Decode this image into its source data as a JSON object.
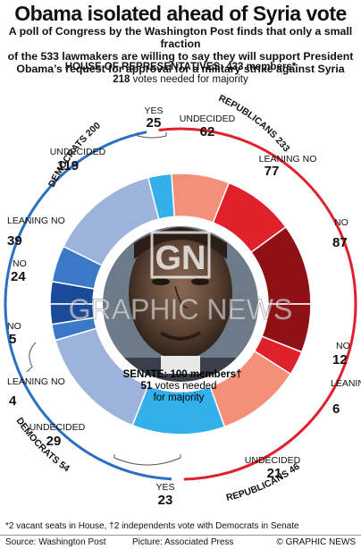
{
  "title": "Obama isolated ahead of Syria vote",
  "subtitle": [
    "A poll of Congress by the Washington Post finds that only a small fraction",
    "of the 533 lawmakers are willing to say they will support President",
    "Obama’s request for approval for a military strike against Syria"
  ],
  "house": {
    "title": "HOUSE OF REPRESENTATIVES: 433 members*",
    "majority_number": "218",
    "majority_text": " votes needed for majority"
  },
  "senate": {
    "title": "SENATE: 100 members†",
    "majority_number": "51",
    "majority_line1": " votes needed",
    "majority_line2": "for majority"
  },
  "party_labels": {
    "house_democrats": "DEMOCRATS 200",
    "house_republicans": "REPUBLICANS 233",
    "senate_democrats": "DEMOCRATS 54",
    "senate_republicans": "REPUBLICANS 46"
  },
  "colors": {
    "democrats": "#2a6fc4",
    "republicans": "#e0202a",
    "dem_no": "#1a4a9a",
    "dem_leaning_no": "#3a78c8",
    "dem_undecided": "#9db3dc",
    "yes": "#33b0ec",
    "rep_undecided": "#f4907a",
    "rep_leaning_no": "#e0202a",
    "rep_no": "#8f1116"
  },
  "photo": {
    "watermark_logo": "GN",
    "watermark_text": "GRAPHIC NEWS"
  },
  "footnote": "*2 vacant seats in House, †2 independents vote with Democrats in Senate",
  "footer": {
    "source": "Source: Washington Post",
    "credit": "Picture: Associated Press",
    "copyright": "© GRAPHIC NEWS"
  },
  "chart_data": [
    {
      "type": "pie",
      "title": "HOUSE OF REPRESENTATIVES: 433 members*",
      "categories": [
        "NO",
        "LEANING NO",
        "UNDECIDED",
        "YES",
        "UNDECIDED",
        "LEANING NO",
        "NO"
      ],
      "groups": [
        "Democrats",
        "Democrats",
        "Democrats",
        "Yes",
        "Republicans",
        "Republicans",
        "Republicans"
      ],
      "values": [
        24,
        39,
        119,
        25,
        62,
        77,
        87
      ]
    },
    {
      "type": "pie",
      "title": "SENATE: 100 members†",
      "categories": [
        "NO",
        "LEANING NO",
        "UNDECIDED",
        "YES",
        "UNDECIDED",
        "LEANING NO",
        "NO"
      ],
      "groups": [
        "Democrats",
        "Democrats",
        "Democrats",
        "Yes",
        "Republicans",
        "Republicans",
        "Republicans"
      ],
      "values": [
        5,
        4,
        29,
        23,
        21,
        6,
        12
      ]
    }
  ]
}
